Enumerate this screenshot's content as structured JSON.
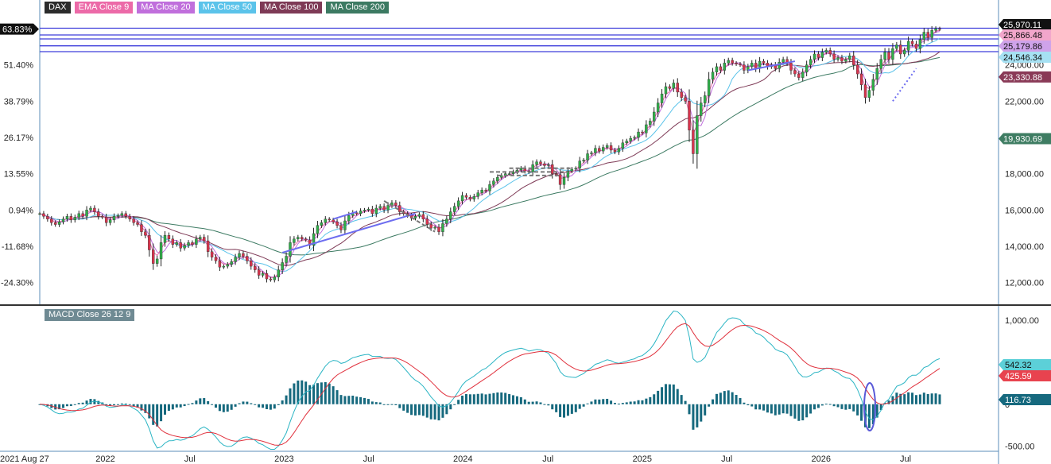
{
  "legend": [
    {
      "label": "DAX",
      "color": "#2b2b2b"
    },
    {
      "label": "EMA Close 9",
      "color": "#ec6aa8"
    },
    {
      "label": "MA Close 20",
      "color": "#c06fdc"
    },
    {
      "label": "MA Close 50",
      "color": "#5bc3ea"
    },
    {
      "label": "MA Close 100",
      "color": "#7e3a56"
    },
    {
      "label": "MA Close 200",
      "color": "#3c7a62"
    }
  ],
  "macd_label": "MACD Close 26 12 9",
  "colors": {
    "up": "#2fae49",
    "down": "#d8344d",
    "wick": "#222222",
    "ema9": "#ec6aa8",
    "ma20": "#c06fdc",
    "ma50": "#5bc3ea",
    "ma100": "#7e3a56",
    "ma200": "#3c7a62",
    "hline": "#3d3ddb",
    "macd": "#2bb5c4",
    "signal": "#e0303c",
    "hist": "#16697e"
  },
  "chart_data": {
    "type": "candlestick",
    "title": "DAX",
    "price_axis": {
      "ticks": [
        "12,000.00",
        "14,000.00",
        "16,000.00",
        "18,000.00",
        "20,000.00",
        "22,000.00",
        "24,000.00"
      ],
      "tick_values": [
        12000,
        14000,
        16000,
        18000,
        20000,
        22000,
        24000
      ],
      "range": [
        10800,
        26700
      ]
    },
    "percent_axis": {
      "ticks": [
        "-24.30%",
        "-11.68%",
        "0.94%",
        "13.55%",
        "26.17%",
        "38.79%",
        "51.40%",
        "64.02%"
      ],
      "tick_values": [
        12000,
        14000,
        16000,
        18000,
        20000,
        22000,
        24000,
        26000
      ]
    },
    "current_percent": "63.83%",
    "x_axis": {
      "labels": [
        "2021 Aug 27",
        "2022",
        "Jul",
        "2023",
        "Jul",
        "2024",
        "Jul",
        "2025",
        "Jul",
        "2026",
        "Jul"
      ],
      "label_dates": [
        "2021-08-27",
        "2022-01-01",
        "2022-07-01",
        "2023-01-01",
        "2023-07-01",
        "2024-01-01",
        "2024-07-01",
        "2025-01-01",
        "2025-07-01",
        "2026-01-01",
        "2026-07-01"
      ]
    },
    "weekly_closes": [
      15800,
      15650,
      15500,
      15300,
      15200,
      15350,
      15500,
      15650,
      15450,
      15600,
      15800,
      15650,
      16000,
      16100,
      15900,
      15650,
      15600,
      15300,
      15450,
      15650,
      15700,
      15800,
      15650,
      15500,
      15300,
      15200,
      14800,
      14600,
      13800,
      13050,
      13300,
      14200,
      14600,
      14400,
      14100,
      14200,
      13900,
      14050,
      14200,
      14100,
      14400,
      14500,
      14300,
      13700,
      13400,
      13200,
      12850,
      12900,
      13000,
      13150,
      13400,
      13600,
      13450,
      13200,
      12900,
      12700,
      12400,
      12500,
      12200,
      12150,
      12300,
      12700,
      13100,
      13450,
      14200,
      14400,
      14500,
      14400,
      14350,
      14050,
      14700,
      15150,
      15300,
      15500,
      15450,
      15350,
      15150,
      14900,
      15400,
      15700,
      15850,
      15800,
      15950,
      16000,
      16050,
      15800,
      16100,
      16200,
      16000,
      16250,
      16400,
      16250,
      15900,
      15800,
      15700,
      15550,
      15650,
      15750,
      15500,
      15200,
      15000,
      15050,
      14800,
      15250,
      15500,
      15900,
      16200,
      16500,
      16800,
      16700,
      16600,
      16750,
      16950,
      17100,
      17050,
      17400,
      17600,
      17800,
      17900,
      18000,
      18000,
      18100,
      18200,
      18300,
      18150,
      18100,
      18500,
      18650,
      18550,
      18450,
      18500,
      18000,
      17950,
      17400,
      17800,
      18150,
      18250,
      18300,
      18700,
      18750,
      19100,
      19150,
      19400,
      19250,
      19450,
      19550,
      19300,
      19200,
      19400,
      19700,
      19800,
      19950,
      20000,
      20300,
      20250,
      20700,
      20900,
      21400,
      21900,
      22400,
      22800,
      22700,
      23000,
      22500,
      22200,
      22000,
      20400,
      19100,
      21200,
      21900,
      22300,
      23200,
      23600,
      23900,
      23700,
      24100,
      24250,
      24100,
      24050,
      24000,
      23700,
      23900,
      24100,
      23800,
      24200,
      24100,
      23900,
      24000,
      23800,
      24150,
      24300,
      24100,
      23700,
      23500,
      23300,
      23600,
      24000,
      24300,
      24600,
      24400,
      24700,
      24800,
      24600,
      24300,
      24400,
      24200,
      24300,
      24500,
      24000,
      23500,
      22900,
      22200,
      22600,
      23200,
      23800,
      24300,
      24700,
      24300,
      24900,
      25100,
      24600,
      24800,
      25300,
      25150,
      24900,
      25400,
      25800,
      25500,
      25900,
      26000,
      25970
    ],
    "series": [
      {
        "name": "EMA Close 9",
        "last_value": 25866.48
      },
      {
        "name": "MA Close 20",
        "last_value": 25179.86
      },
      {
        "name": "MA Close 50",
        "last_value": 24546.34
      },
      {
        "name": "MA Close 100",
        "last_value": 23330.88
      },
      {
        "name": "MA Close 200",
        "last_value": 19930.69
      },
      {
        "name": "DAX",
        "last_value": 25970.11
      }
    ],
    "last_labels": [
      {
        "text": "25,970.11",
        "value": 25970.11,
        "color": "#111111"
      },
      {
        "text": "25,866.48",
        "value": 25866.48,
        "color": "#f2a6cb"
      },
      {
        "text": "25,179.86",
        "value": 25179.86,
        "color": "#cfa3ea"
      },
      {
        "text": "24,546.34",
        "value": 24546.34,
        "color": "#a6e1f3"
      },
      {
        "text": "23,330.88",
        "value": 23330.88,
        "color": "#8a3a57"
      },
      {
        "text": "19,930.69",
        "value": 19930.69,
        "color": "#3f7d63"
      }
    ],
    "horizontal_lines": [
      26020,
      25650,
      25430,
      25050,
      24730
    ],
    "macd": {
      "axis_ticks": [
        "1,000.00",
        "500.00",
        "0",
        "-500.00"
      ],
      "axis_values": [
        1000,
        500,
        0,
        -500
      ],
      "range": [
        -560,
        1170
      ],
      "macd_last": "542.32",
      "signal_last": "425.59",
      "histogram_last": "116.73",
      "macd_value": 542.32,
      "signal_value": 425.59,
      "histogram_value": 116.73
    }
  }
}
